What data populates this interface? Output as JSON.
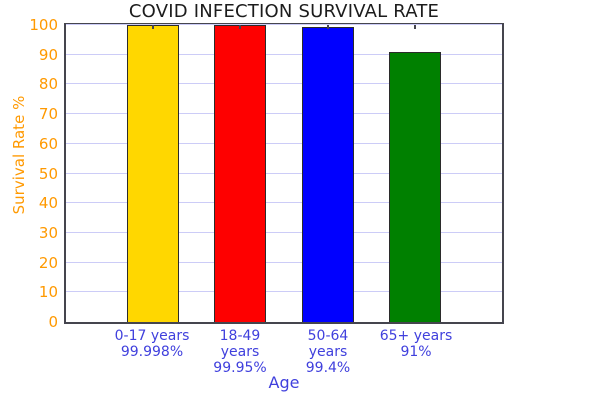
{
  "chart_data": {
    "type": "bar",
    "title": "COVID INFECTION SURVIVAL RATE",
    "xlabel": "Age",
    "ylabel": "Survival Rate %",
    "ylim": [
      0,
      100
    ],
    "yticks": [
      0,
      10,
      20,
      30,
      40,
      50,
      60,
      70,
      80,
      90,
      100
    ],
    "grid": true,
    "legend_position": "none",
    "categories": [
      "0-17 years",
      "18-49 years",
      "50-64 years",
      "65+ years"
    ],
    "values": [
      99.998,
      99.95,
      99.4,
      91
    ],
    "value_labels": [
      "99.998%",
      "99.95%",
      "99.4%",
      "91%"
    ],
    "bar_colors": [
      "#ffd700",
      "#fe0000",
      "#0000ff",
      "#008000"
    ],
    "x_tick_label_lines": [
      [
        "0-17 years",
        "99.998%"
      ],
      [
        "18-49",
        "years",
        "99.95%"
      ],
      [
        "50-64",
        "years",
        "99.4%"
      ],
      [
        "65+ years",
        "91%"
      ]
    ]
  },
  "style": {
    "title_color": "#1c1c1c",
    "y_axis_color": "#ff9900",
    "x_axis_color": "#4040dd",
    "grid_color": "#ccccf7",
    "frame_color": "#45454e",
    "bar_border_color": "#2b2b2b",
    "background": "#ffffff"
  }
}
